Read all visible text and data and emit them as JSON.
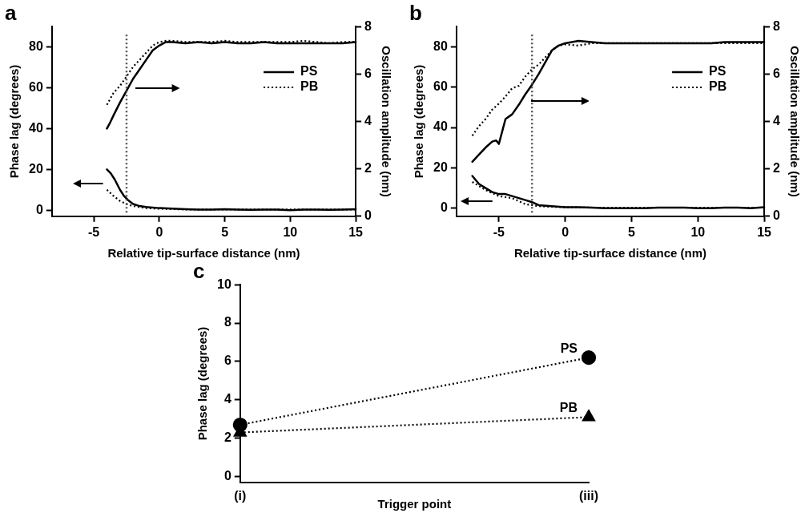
{
  "chart_data": [
    {
      "type": "line",
      "title": "a",
      "xlabel": "Relative tip-surface distance (nm)",
      "ylabel": "Phase lag (degrees)",
      "y2label": "Oscillation amplitude (nm)",
      "xlim": [
        -8.2,
        15
      ],
      "xticks": [
        -5,
        0,
        5,
        10,
        15
      ],
      "ylim": [
        -3,
        90
      ],
      "yticks": [
        0,
        20,
        40,
        60,
        80
      ],
      "y2lim": [
        0,
        8
      ],
      "y2ticks": [
        0,
        2,
        4,
        6,
        8
      ],
      "grid": false,
      "legend": "top right",
      "ref_lines": [
        {
          "axis": "x",
          "value": -2.5,
          "color": "#555555",
          "line_style": "dotted"
        }
      ],
      "series": [
        {
          "name": "PS",
          "color": "#000000",
          "line_style": "solid",
          "axis": "y2",
          "x": [
            -4,
            -3.8,
            -3.5,
            -3,
            -2.5,
            -2,
            -1.5,
            -1,
            -0.5,
            0,
            0.5,
            1,
            2,
            3,
            4,
            5,
            6,
            7,
            8,
            9,
            10,
            11,
            12,
            13,
            14,
            15
          ],
          "values": [
            3.7,
            3.9,
            4.25,
            4.8,
            5.3,
            5.8,
            6.2,
            6.6,
            7,
            7.2,
            7.35,
            7.35,
            7.3,
            7.35,
            7.3,
            7.35,
            7.3,
            7.3,
            7.35,
            7.3,
            7.3,
            7.3,
            7.3,
            7.3,
            7.3,
            7.35
          ]
        },
        {
          "name": "PB",
          "color": "#000000",
          "line_style": "dotted",
          "axis": "y2",
          "x": [
            -4,
            -3.5,
            -3,
            -2.5,
            -2,
            -1.5,
            -1,
            -0.5,
            0,
            0.5,
            1,
            2,
            3,
            4,
            5,
            6,
            7,
            8,
            9,
            10,
            11,
            12,
            13,
            14,
            15
          ],
          "values": [
            4.7,
            5.2,
            5.5,
            5.9,
            6.3,
            6.6,
            6.9,
            7.2,
            7.35,
            7.4,
            7.4,
            7.35,
            7.35,
            7.35,
            7.4,
            7.35,
            7.35,
            7.35,
            7.35,
            7.35,
            7.4,
            7.35,
            7.3,
            7.35,
            7.35
          ]
        },
        {
          "color": "#000000",
          "line_style": "solid",
          "x": [
            -4,
            -3.7,
            -3.4,
            -3,
            -2.7,
            -2.4,
            -2,
            -1.5,
            -1,
            0,
            1,
            2,
            3,
            4,
            5,
            6,
            7,
            8,
            9,
            10,
            11,
            12,
            13,
            14,
            15
          ],
          "values": [
            20,
            18,
            15,
            10,
            7,
            5,
            3,
            2,
            1.5,
            1,
            0.8,
            0.5,
            0.3,
            0.3,
            0.5,
            0.3,
            0.2,
            0.3,
            0.3,
            0,
            0.3,
            0.3,
            0.2,
            0.3,
            0.5
          ]
        },
        {
          "color": "#000000",
          "line_style": "dotted",
          "x": [
            -4,
            -3.5,
            -3,
            -2.5,
            -2,
            -1.5,
            -1,
            0,
            1,
            2,
            4,
            6,
            8,
            10,
            12,
            14,
            15
          ],
          "values": [
            10,
            7,
            4.5,
            3,
            2,
            1.5,
            1,
            0.7,
            0.5,
            0.3,
            0.3,
            0.3,
            0.3,
            0.3,
            0.3,
            0.3,
            0.3
          ]
        }
      ]
    },
    {
      "type": "line",
      "title": "b",
      "xlabel": "Relative tip-surface distance (nm)",
      "ylabel": "Phase lag (degrees)",
      "y2label": "Oscillation amplitude (nm)",
      "xlim": [
        -8.2,
        15
      ],
      "xticks": [
        -5,
        0,
        5,
        10,
        15
      ],
      "ylim": [
        -4,
        90
      ],
      "yticks": [
        0,
        20,
        40,
        60,
        80
      ],
      "y2lim": [
        0,
        8
      ],
      "y2ticks": [
        0,
        2,
        4,
        6,
        8
      ],
      "grid": false,
      "legend": "top right",
      "ref_lines": [
        {
          "axis": "x",
          "value": -2.5,
          "color": "#555555",
          "line_style": "dotted"
        }
      ],
      "series": [
        {
          "name": "PS",
          "color": "#000000",
          "line_style": "solid",
          "axis": "y2",
          "x": [
            -7,
            -6.5,
            -6,
            -5.5,
            -5.2,
            -5,
            -4.5,
            -4,
            -3.5,
            -3,
            -2.5,
            -2,
            -1.5,
            -1,
            -0.5,
            0,
            1,
            2,
            3,
            4,
            5,
            6,
            7,
            8,
            9,
            10,
            11,
            12,
            13,
            14,
            15
          ],
          "values": [
            2.3,
            2.6,
            2.9,
            3.15,
            3.2,
            3.05,
            4.1,
            4.3,
            4.7,
            5.15,
            5.55,
            6.0,
            6.5,
            7.0,
            7.2,
            7.3,
            7.4,
            7.35,
            7.3,
            7.3,
            7.3,
            7.3,
            7.3,
            7.3,
            7.3,
            7.3,
            7.3,
            7.35,
            7.35,
            7.35,
            7.35
          ]
        },
        {
          "name": "PB",
          "color": "#000000",
          "line_style": "dotted",
          "axis": "y2",
          "x": [
            -7,
            -6.5,
            -6,
            -5.5,
            -5,
            -4.5,
            -4,
            -3.5,
            -3,
            -2.5,
            -2,
            -1.5,
            -1,
            -0.5,
            0,
            1,
            2,
            3,
            4,
            5,
            6,
            7,
            8,
            9,
            10,
            11,
            12,
            13,
            14,
            15
          ],
          "values": [
            3.4,
            3.8,
            4.1,
            4.5,
            4.75,
            5.05,
            5.4,
            5.5,
            5.9,
            6.2,
            6.4,
            6.7,
            7.0,
            7.2,
            7.25,
            7.2,
            7.3,
            7.3,
            7.3,
            7.3,
            7.3,
            7.3,
            7.3,
            7.3,
            7.3,
            7.3,
            7.3,
            7.3,
            7.3,
            7.3
          ]
        },
        {
          "color": "#000000",
          "line_style": "solid",
          "x": [
            -7,
            -6.5,
            -6,
            -5.5,
            -5,
            -4.5,
            -4,
            -3.5,
            -3,
            -2.5,
            -2,
            -1,
            0,
            1,
            2,
            3,
            4,
            5,
            6,
            7,
            8,
            9,
            10,
            11,
            12,
            13,
            14,
            15
          ],
          "values": [
            16,
            12,
            10,
            8,
            7,
            7,
            6,
            5,
            4,
            3,
            1.5,
            1,
            0.5,
            0.5,
            0.3,
            0,
            0,
            0,
            0,
            0.3,
            0.3,
            0.3,
            0,
            0,
            0.3,
            0.3,
            0,
            0.5
          ]
        },
        {
          "color": "#000000",
          "line_style": "dotted",
          "x": [
            -7,
            -6.5,
            -6,
            -5,
            -4,
            -3.5,
            -3,
            -2.5,
            -2,
            -1,
            0,
            2,
            4,
            6,
            8,
            10,
            12,
            14,
            15
          ],
          "values": [
            13,
            11,
            9,
            6,
            5,
            3.5,
            2,
            1.5,
            1,
            0.7,
            0.5,
            0.3,
            0.3,
            0.3,
            0.3,
            0.3,
            0.3,
            0.3,
            0.3
          ]
        }
      ]
    },
    {
      "type": "line",
      "title": "c",
      "xlabel": "Trigger point",
      "ylabel": "Phase lag (degrees)",
      "categories": [
        "(i)",
        "(iii)"
      ],
      "ylim": [
        -0.3,
        10
      ],
      "yticks": [
        0,
        2,
        4,
        6,
        8,
        10
      ],
      "grid": false,
      "legend": false,
      "line_style": "dotted",
      "series": [
        {
          "name": "PS",
          "color": "#000000",
          "marker": "circle",
          "values": [
            2.7,
            6.2
          ]
        },
        {
          "name": "PB",
          "color": "#000000",
          "marker": "triangle",
          "values": [
            2.3,
            3.1
          ]
        }
      ]
    }
  ]
}
